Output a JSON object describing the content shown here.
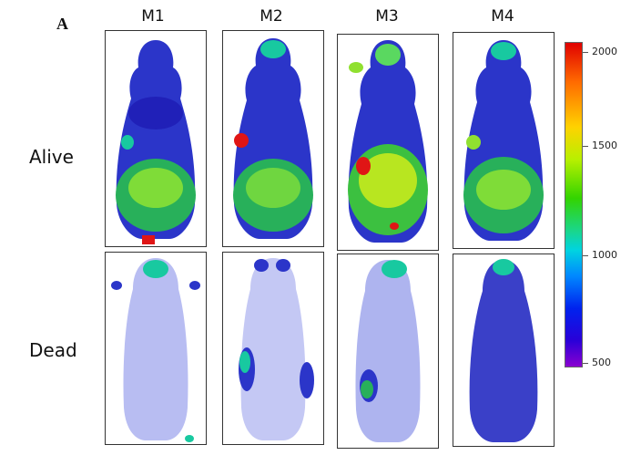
{
  "panel_letter": "A",
  "columns": [
    "M1",
    "M2",
    "M3",
    "M4"
  ],
  "rows": [
    "Alive",
    "Dead"
  ],
  "colorbar": {
    "labels": [
      "2000",
      "1500",
      "1000",
      "500"
    ],
    "colors": [
      "#e00000",
      "#ffd200",
      "#33d400",
      "#00d4e0",
      "#0022ee",
      "#8a00d0"
    ]
  }
}
